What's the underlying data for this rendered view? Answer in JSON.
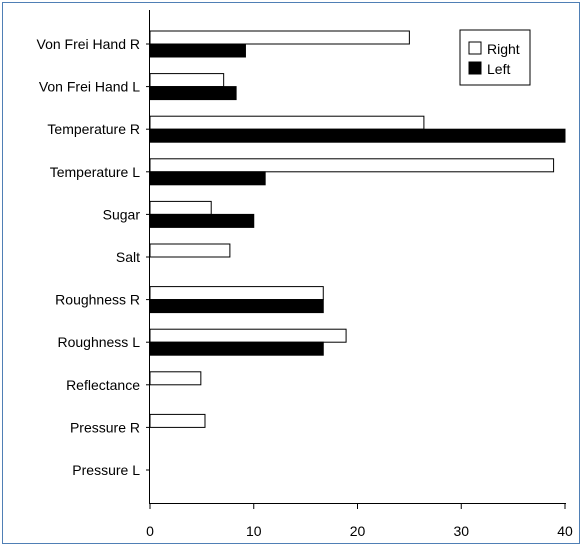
{
  "chart_data": {
    "type": "bar",
    "orientation": "horizontal",
    "title": "",
    "xlabel": "",
    "ylabel": "",
    "categories": [
      "Von Frei Hand R",
      "Von Frei Hand L",
      "Temperature R",
      "Temperature L",
      "Sugar",
      "Salt",
      "Roughness R",
      "Roughness L",
      "Reflectance",
      "Pressure R",
      "Pressure L"
    ],
    "series": [
      {
        "name": "Right",
        "color": "#ffffff",
        "values": [
          25,
          7.1,
          26.4,
          38.9,
          5.9,
          7.7,
          16.7,
          18.9,
          4.9,
          5.3,
          0
        ]
      },
      {
        "name": "Left",
        "color": "#000000",
        "values": [
          9.2,
          8.3,
          40,
          11.1,
          10,
          0,
          16.7,
          16.7,
          0,
          0,
          0
        ]
      }
    ],
    "xlim": [
      0,
      40
    ],
    "xticks": [
      0,
      10,
      20,
      30,
      40
    ],
    "grid": false,
    "legend": "top-right"
  }
}
